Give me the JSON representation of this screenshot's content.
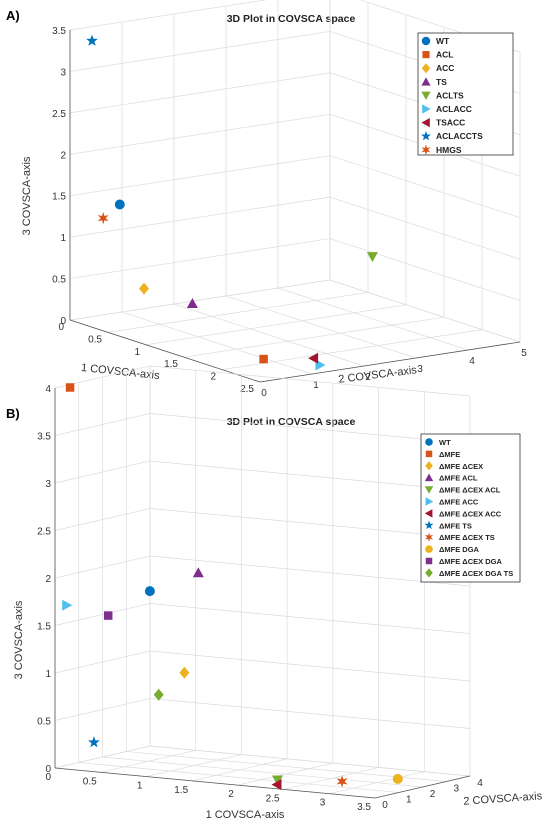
{
  "panel_labels": [
    "A)",
    "B)"
  ],
  "chart_data": [
    {
      "type": "scatter",
      "title": "3D Plot in COVSCA space",
      "xlabel": "1 COVSCA-axis",
      "ylabel": "2 COVSCA-axis",
      "zlabel": "3 COVSCA-axis",
      "xlim": [
        0,
        2.5
      ],
      "ylim": [
        0,
        5
      ],
      "zlim": [
        0,
        3.5
      ],
      "xticks": [
        "0",
        "0.5",
        "1",
        "1.5",
        "2",
        "2.5"
      ],
      "yticks": [
        "0",
        "1",
        "2",
        "3",
        "4",
        "5"
      ],
      "zticks": [
        "0",
        "0.5",
        "1",
        "1.5",
        "2",
        "2.5",
        "3",
        "3.5"
      ],
      "grid": true,
      "legend_position": "top-right",
      "series": [
        {
          "name": "WT",
          "marker": "circle",
          "color": "#0072BD",
          "x": 0.45,
          "y": 0.3,
          "z": 1.5
        },
        {
          "name": "ACL",
          "marker": "square",
          "color": "#D95319",
          "x": 2.0,
          "y": 0.8,
          "z": 0.05
        },
        {
          "name": "ACC",
          "marker": "diamond",
          "color": "#EDB120",
          "x": 0.7,
          "y": 0.4,
          "z": 0.55
        },
        {
          "name": "TS",
          "marker": "triangle-up",
          "color": "#7E2F8E",
          "x": 1.2,
          "y": 0.6,
          "z": 0.5
        },
        {
          "name": "ACLTS",
          "marker": "triangle-down",
          "color": "#77AC30",
          "x": 0.9,
          "y": 4.5,
          "z": 0.6
        },
        {
          "name": "ACLACC",
          "marker": "triangle-right",
          "color": "#4DBEEE",
          "x": 2.4,
          "y": 1.3,
          "z": 0.05
        },
        {
          "name": "TSACC",
          "marker": "triangle-left",
          "color": "#A2142F",
          "x": 2.35,
          "y": 1.25,
          "z": 0.12
        },
        {
          "name": "ACLACCTS",
          "marker": "star5",
          "color": "#0072BD",
          "x": 0.05,
          "y": 0.35,
          "z": 3.35
        },
        {
          "name": "HMGS",
          "marker": "star6",
          "color": "#D95319",
          "x": 0.3,
          "y": 0.2,
          "z": 1.3
        }
      ]
    },
    {
      "type": "scatter",
      "title": "3D Plot in COVSCA space",
      "xlabel": "1 COVSCA-axis",
      "ylabel": "2 COVSCA-axis",
      "zlabel": "3 COVSCA-axis",
      "xlim": [
        0,
        3.5
      ],
      "ylim": [
        0,
        4
      ],
      "zlim": [
        0,
        4
      ],
      "xticks": [
        "0",
        "0.5",
        "1",
        "1.5",
        "2",
        "2.5",
        "3",
        "3.5"
      ],
      "yticks": [
        "0",
        "1",
        "2",
        "3",
        "4"
      ],
      "zticks": [
        "0",
        "0.5",
        "1",
        "1.5",
        "2",
        "2.5",
        "3",
        "3.5",
        "4"
      ],
      "grid": true,
      "legend_position": "top-right",
      "series": [
        {
          "name": "WT",
          "marker": "circle",
          "color": "#0072BD",
          "x": 0.7,
          "y": 1.3,
          "z": 1.85
        },
        {
          "name": "ΔMFE",
          "marker": "square",
          "color": "#D95319",
          "x": 0.1,
          "y": 0.25,
          "z": 4.0
        },
        {
          "name": "ΔMFE ΔCEX",
          "marker": "diamond",
          "color": "#EDB120",
          "x": 1.0,
          "y": 1.6,
          "z": 1.0
        },
        {
          "name": "ΔMFE ACL",
          "marker": "triangle-up",
          "color": "#7E2F8E",
          "x": 1.1,
          "y": 1.8,
          "z": 2.05
        },
        {
          "name": "ΔMFE ΔCEX ACL",
          "marker": "triangle-down",
          "color": "#77AC30",
          "x": 2.2,
          "y": 0.9,
          "z": 0.02
        },
        {
          "name": "ΔMFE ACC",
          "marker": "triangle-right",
          "color": "#4DBEEE",
          "x": 0.05,
          "y": 0.3,
          "z": 1.7
        },
        {
          "name": "ΔMFE ΔCEX ACC",
          "marker": "triangle-left",
          "color": "#A2142F",
          "x": 2.35,
          "y": 0.3,
          "z": 0.02
        },
        {
          "name": "ΔMFE TS",
          "marker": "star5",
          "color": "#0072BD",
          "x": 0.4,
          "y": 0.1,
          "z": 0.3
        },
        {
          "name": "ΔMFE ΔCEX TS",
          "marker": "star6",
          "color": "#D95319",
          "x": 2.75,
          "y": 1.5,
          "z": 0.02
        },
        {
          "name": "ΔMFE DGA",
          "marker": "circle",
          "color": "#EDB120",
          "x": 3.1,
          "y": 2.5,
          "z": 0.02
        },
        {
          "name": "ΔMFE ΔCEX DGA",
          "marker": "square",
          "color": "#7E2F8E",
          "x": 0.4,
          "y": 0.7,
          "z": 1.6
        },
        {
          "name": "ΔMFE ΔCEX DGA TS",
          "marker": "diamond",
          "color": "#77AC30",
          "x": 0.9,
          "y": 0.9,
          "z": 0.8
        }
      ]
    }
  ]
}
